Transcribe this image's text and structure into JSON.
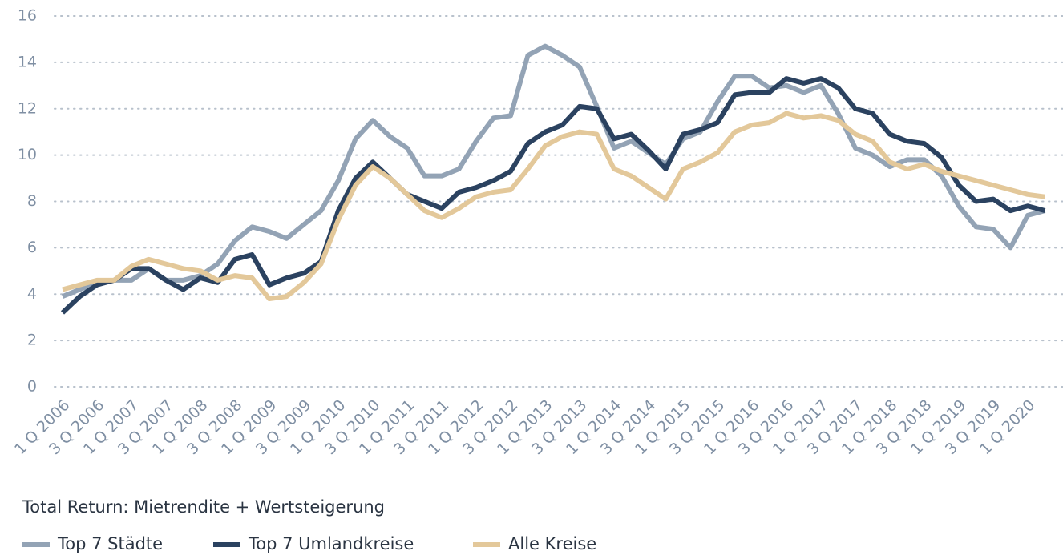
{
  "chart_data": {
    "type": "line",
    "caption": "Total Return: Mietrendite + Wertsteigerung",
    "categories": [
      "1 Q 2006",
      null,
      "3 Q 2006",
      null,
      "1 Q 2007",
      null,
      "3 Q 2007",
      null,
      "1 Q 2008",
      null,
      "3 Q 2008",
      null,
      "1 Q 2009",
      null,
      "3 Q 2009",
      null,
      "1 Q 2010",
      null,
      "3 Q 2010",
      null,
      "1 Q 2011",
      null,
      "3 Q 2011",
      null,
      "1 Q 2012",
      null,
      "3 Q 2012",
      null,
      "1 Q 2013",
      null,
      "3 Q 2013",
      null,
      "1 Q 2014",
      null,
      "3 Q 2014",
      null,
      "1 Q 2015",
      null,
      "3 Q 2015",
      null,
      "1 Q 2016",
      null,
      "3 Q 2016",
      null,
      "1 Q 2017",
      null,
      "3 Q 2017",
      null,
      "1 Q 2018",
      null,
      "3 Q 2018",
      null,
      "1 Q 2019",
      null,
      "3 Q 2019",
      null,
      "1 Q 2020",
      null
    ],
    "series": [
      {
        "name": "Top 7 Städte",
        "color": "#93a3b5",
        "values": [
          3.9,
          4.2,
          4.5,
          4.6,
          4.6,
          5.1,
          4.6,
          4.6,
          4.8,
          5.3,
          6.3,
          6.9,
          6.7,
          6.4,
          7.0,
          7.6,
          8.9,
          10.7,
          11.5,
          10.8,
          10.3,
          9.1,
          9.1,
          9.4,
          10.6,
          11.6,
          11.7,
          14.3,
          14.7,
          14.3,
          13.8,
          12.1,
          10.3,
          10.6,
          10.1,
          9.6,
          10.7,
          11.0,
          12.3,
          13.4,
          13.4,
          12.9,
          13.0,
          12.7,
          13.0,
          11.8,
          10.3,
          10.0,
          9.5,
          9.8,
          9.8,
          9.1,
          7.8,
          6.9,
          6.8,
          6.0,
          7.4,
          7.6
        ]
      },
      {
        "name": "Top 7 Umlandkreise",
        "color": "#2b4260",
        "values": [
          3.2,
          3.9,
          4.4,
          4.6,
          5.1,
          5.1,
          4.6,
          4.2,
          4.7,
          4.5,
          5.5,
          5.7,
          4.4,
          4.7,
          4.9,
          5.4,
          7.6,
          9.0,
          9.7,
          9.0,
          8.3,
          8.0,
          7.7,
          8.4,
          8.6,
          8.9,
          9.3,
          10.5,
          11.0,
          11.3,
          12.1,
          12.0,
          10.7,
          10.9,
          10.2,
          9.4,
          10.9,
          11.1,
          11.4,
          12.6,
          12.7,
          12.7,
          13.3,
          13.1,
          13.3,
          12.9,
          12.0,
          11.8,
          10.9,
          10.6,
          10.5,
          9.9,
          8.7,
          8.0,
          8.1,
          7.6,
          7.8,
          7.6
        ]
      },
      {
        "name": "Alle Kreise",
        "color": "#e3c89a",
        "values": [
          4.2,
          4.4,
          4.6,
          4.6,
          5.2,
          5.5,
          5.3,
          5.1,
          5.0,
          4.6,
          4.8,
          4.7,
          3.8,
          3.9,
          4.5,
          5.3,
          7.2,
          8.7,
          9.5,
          9.0,
          8.3,
          7.6,
          7.3,
          7.7,
          8.2,
          8.4,
          8.5,
          9.4,
          10.4,
          10.8,
          11.0,
          10.9,
          9.4,
          9.1,
          8.6,
          8.1,
          9.4,
          9.7,
          10.1,
          11.0,
          11.3,
          11.4,
          11.8,
          11.6,
          11.7,
          11.5,
          10.9,
          10.6,
          9.7,
          9.4,
          9.6,
          9.3,
          9.1,
          8.9,
          8.7,
          8.5,
          8.3,
          8.2
        ]
      }
    ],
    "ylim": [
      0,
      16
    ],
    "yticks": [
      0,
      2,
      4,
      6,
      8,
      10,
      12,
      14,
      16
    ],
    "grid": true
  }
}
